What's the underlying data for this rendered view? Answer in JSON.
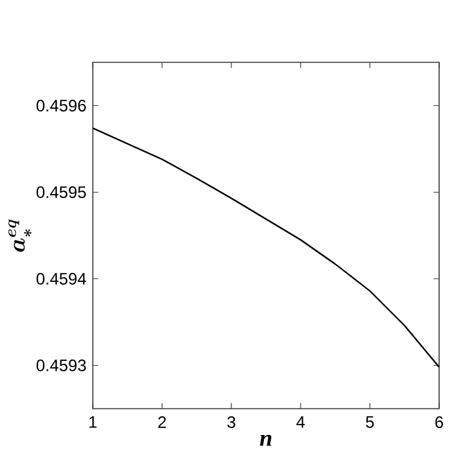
{
  "chart_data": {
    "type": "line",
    "xlabel": "n",
    "ylabel": "a_{*}^{eq}",
    "x": [
      1,
      1.5,
      2,
      2.5,
      3,
      3.5,
      4,
      4.5,
      5,
      5.5,
      6
    ],
    "series": [
      {
        "color": "#000000",
        "values": [
          0.459574,
          0.459556,
          0.459538,
          0.459516,
          0.459493,
          0.459469,
          0.459445,
          0.459417,
          0.459386,
          0.459346,
          0.459298
        ]
      }
    ],
    "xlim": [
      1,
      6
    ],
    "ylim": [
      0.45925,
      0.45965
    ],
    "xticks": [
      1,
      2,
      3,
      4,
      5,
      6
    ],
    "yticks": [
      0.4593,
      0.4594,
      0.4595,
      0.4596
    ],
    "grid": false,
    "marker": "none",
    "line_style": "solid"
  }
}
